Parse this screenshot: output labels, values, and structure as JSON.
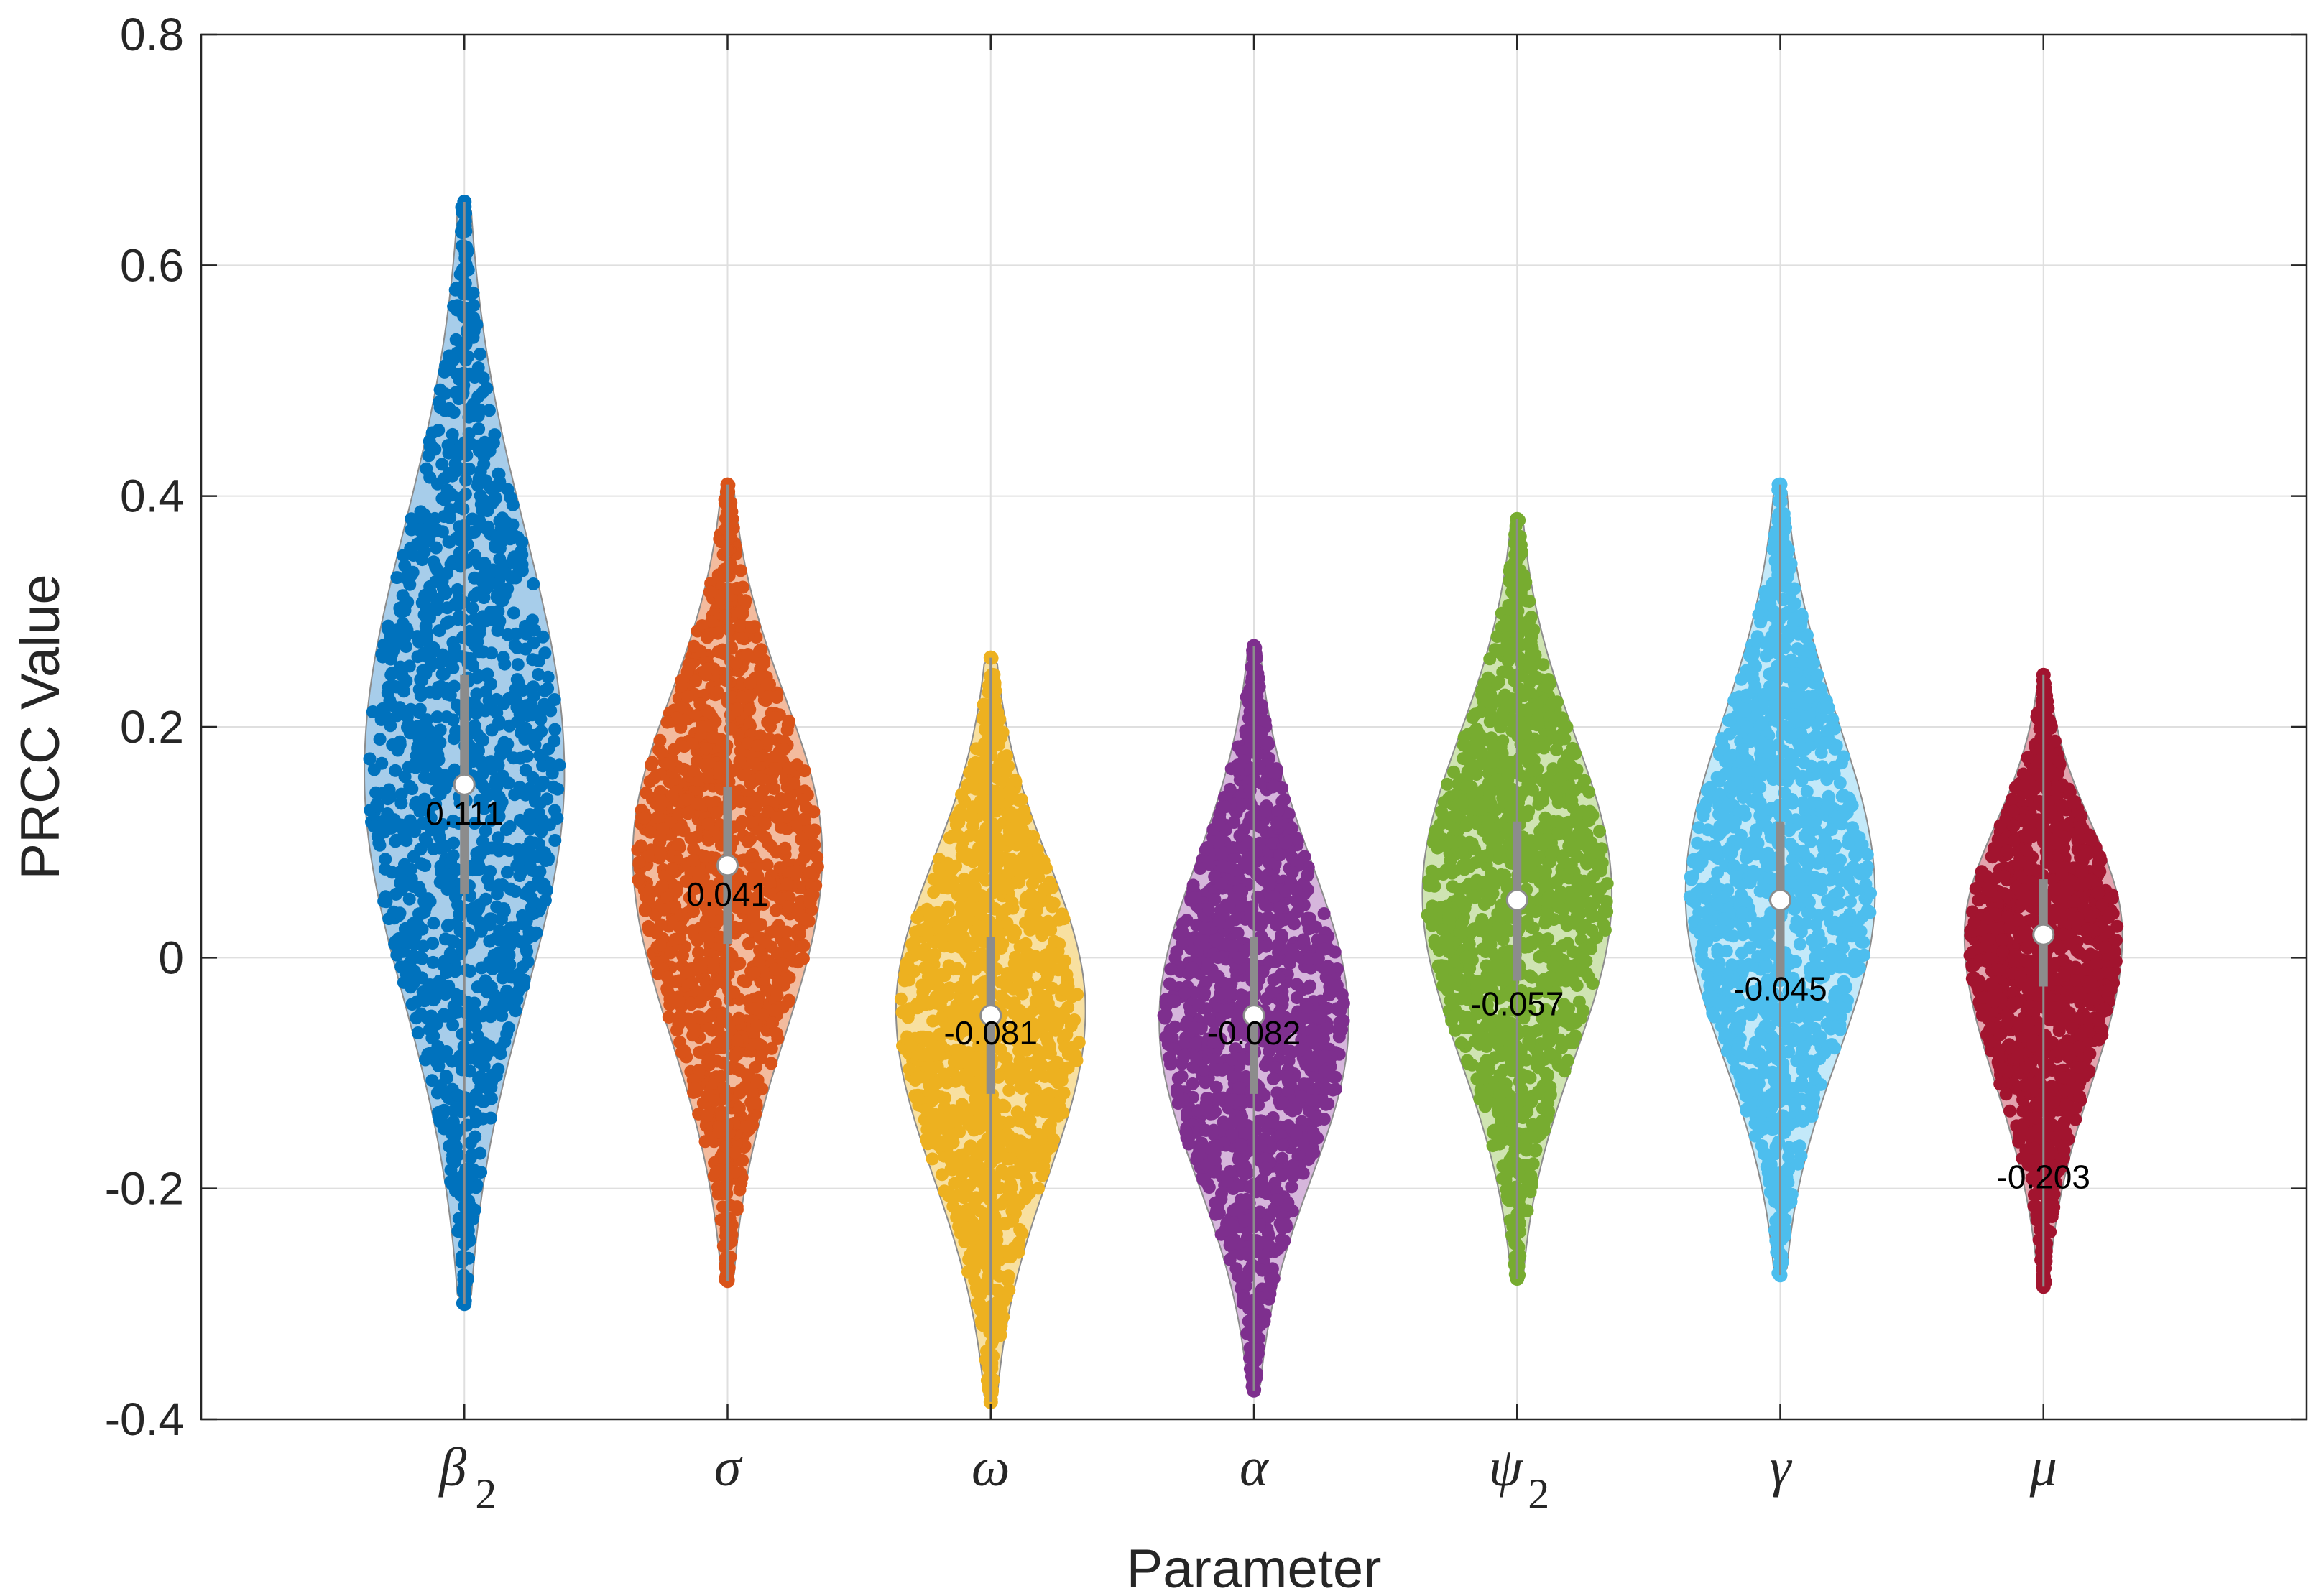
{
  "chart_data": {
    "type": "violin",
    "xlabel": "Parameter",
    "ylabel": "PRCC Value",
    "ylim": [
      -0.4,
      0.8
    ],
    "yticks": [
      -0.4,
      -0.2,
      0,
      0.2,
      0.4,
      0.6,
      0.8
    ],
    "ytick_labels": [
      "-0.4",
      "-0.2",
      "0",
      "0.2",
      "0.4",
      "0.6",
      "0.8"
    ],
    "grid": true,
    "colors": {
      "grid": "#dfdfdf",
      "axis": "#262626",
      "whisker": "#8c8c8c",
      "median_fill": "#ffffff"
    },
    "series": [
      {
        "name": "beta_2",
        "label": "β",
        "sub": "2",
        "color": "#0072bd",
        "light": "#a7cdea",
        "median": 0.15,
        "q1": 0.055,
        "q3": 0.245,
        "min": -0.3,
        "max": 0.655,
        "peak": 0.16,
        "width": 0.38,
        "annotation": "0.111",
        "annotation_y": 0.125
      },
      {
        "name": "sigma",
        "label": "σ",
        "sub": "",
        "color": "#d95319",
        "light": "#f3bb9e",
        "median": 0.08,
        "q1": 0.012,
        "q3": 0.148,
        "min": -0.28,
        "max": 0.41,
        "peak": 0.09,
        "width": 0.36,
        "annotation": "0.041",
        "annotation_y": 0.055
      },
      {
        "name": "omega",
        "label": "ω",
        "sub": "",
        "color": "#edb120",
        "light": "#f8e0a0",
        "median": -0.05,
        "q1": -0.118,
        "q3": 0.018,
        "min": -0.385,
        "max": 0.26,
        "peak": -0.045,
        "width": 0.36,
        "annotation": "-0.081",
        "annotation_y": -0.065
      },
      {
        "name": "alpha",
        "label": "α",
        "sub": "",
        "color": "#7e2f8e",
        "light": "#d6b6dc",
        "median": -0.05,
        "q1": -0.118,
        "q3": 0.018,
        "min": -0.375,
        "max": 0.27,
        "peak": -0.055,
        "width": 0.36,
        "annotation": "-0.082",
        "annotation_y": -0.065
      },
      {
        "name": "psi_2",
        "label": "ψ",
        "sub": "2",
        "color": "#77ac30",
        "light": "#cfe4b2",
        "median": 0.05,
        "q1": -0.02,
        "q3": 0.118,
        "min": -0.278,
        "max": 0.38,
        "peak": 0.055,
        "width": 0.36,
        "annotation": "-0.057",
        "annotation_y": -0.04
      },
      {
        "name": "gamma",
        "label": "γ",
        "sub": "",
        "color": "#4dbeee",
        "light": "#c3e9f9",
        "median": 0.05,
        "q1": -0.02,
        "q3": 0.118,
        "min": -0.275,
        "max": 0.41,
        "peak": 0.055,
        "width": 0.36,
        "annotation": "-0.045",
        "annotation_y": -0.027
      },
      {
        "name": "mu",
        "label": "μ",
        "sub": "",
        "color": "#a2142f",
        "light": "#e3a3ae",
        "median": 0.02,
        "q1": -0.025,
        "q3": 0.068,
        "min": -0.285,
        "max": 0.245,
        "peak": 0.02,
        "width": 0.3,
        "annotation": "-0.203",
        "annotation_y": -0.19
      }
    ]
  }
}
